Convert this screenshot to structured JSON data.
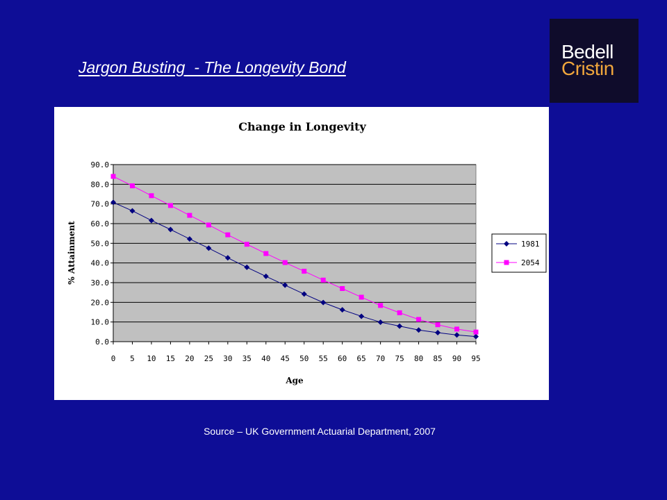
{
  "slide": {
    "title": "Jargon Busting  - The Longevity Bond",
    "source": "Source – UK Government Actuarial Department, 2007"
  },
  "logo": {
    "line1": "Bedell",
    "line2": "Cristin",
    "colors": {
      "background": "#0f0c2b",
      "line1": "#ffffff",
      "line2": "#f0a63c"
    }
  },
  "colors": {
    "slide_background": "#0e0d96",
    "plot_background": "#c0c0c0"
  },
  "chart_data": {
    "type": "line",
    "title": "Change in Longevity",
    "xlabel": "Age",
    "ylabel": "% Attainment",
    "x": [
      0,
      5,
      10,
      15,
      20,
      25,
      30,
      35,
      40,
      45,
      50,
      55,
      60,
      65,
      70,
      75,
      80,
      85,
      90,
      95
    ],
    "x_tick_labels": [
      "0",
      "5",
      "10",
      "15",
      "20",
      "25",
      "30",
      "35",
      "40",
      "45",
      "50",
      "55",
      "60",
      "65",
      "70",
      "75",
      "80",
      "85",
      "90",
      "95"
    ],
    "y_tick_labels": [
      "0.0",
      "10.0",
      "20.0",
      "30.0",
      "40.0",
      "50.0",
      "60.0",
      "70.0",
      "80.0",
      "90.0"
    ],
    "ylim": [
      0,
      90
    ],
    "ystep": 10,
    "grid": true,
    "legend_position": "right",
    "series": [
      {
        "name": "1981",
        "color": "#000080",
        "marker": "diamond",
        "values": [
          70.8,
          66.5,
          61.6,
          57.0,
          52.2,
          47.5,
          42.6,
          37.8,
          33.2,
          28.7,
          24.2,
          19.9,
          16.2,
          12.9,
          9.9,
          7.9,
          5.9,
          4.6,
          3.4,
          2.6
        ]
      },
      {
        "name": "2054",
        "color": "#ff00ff",
        "marker": "square",
        "values": [
          84.0,
          79.2,
          74.2,
          69.2,
          64.2,
          59.3,
          54.3,
          49.5,
          44.8,
          40.2,
          35.8,
          31.3,
          27.0,
          22.6,
          18.4,
          14.7,
          11.3,
          8.6,
          6.4,
          4.9
        ]
      }
    ]
  }
}
